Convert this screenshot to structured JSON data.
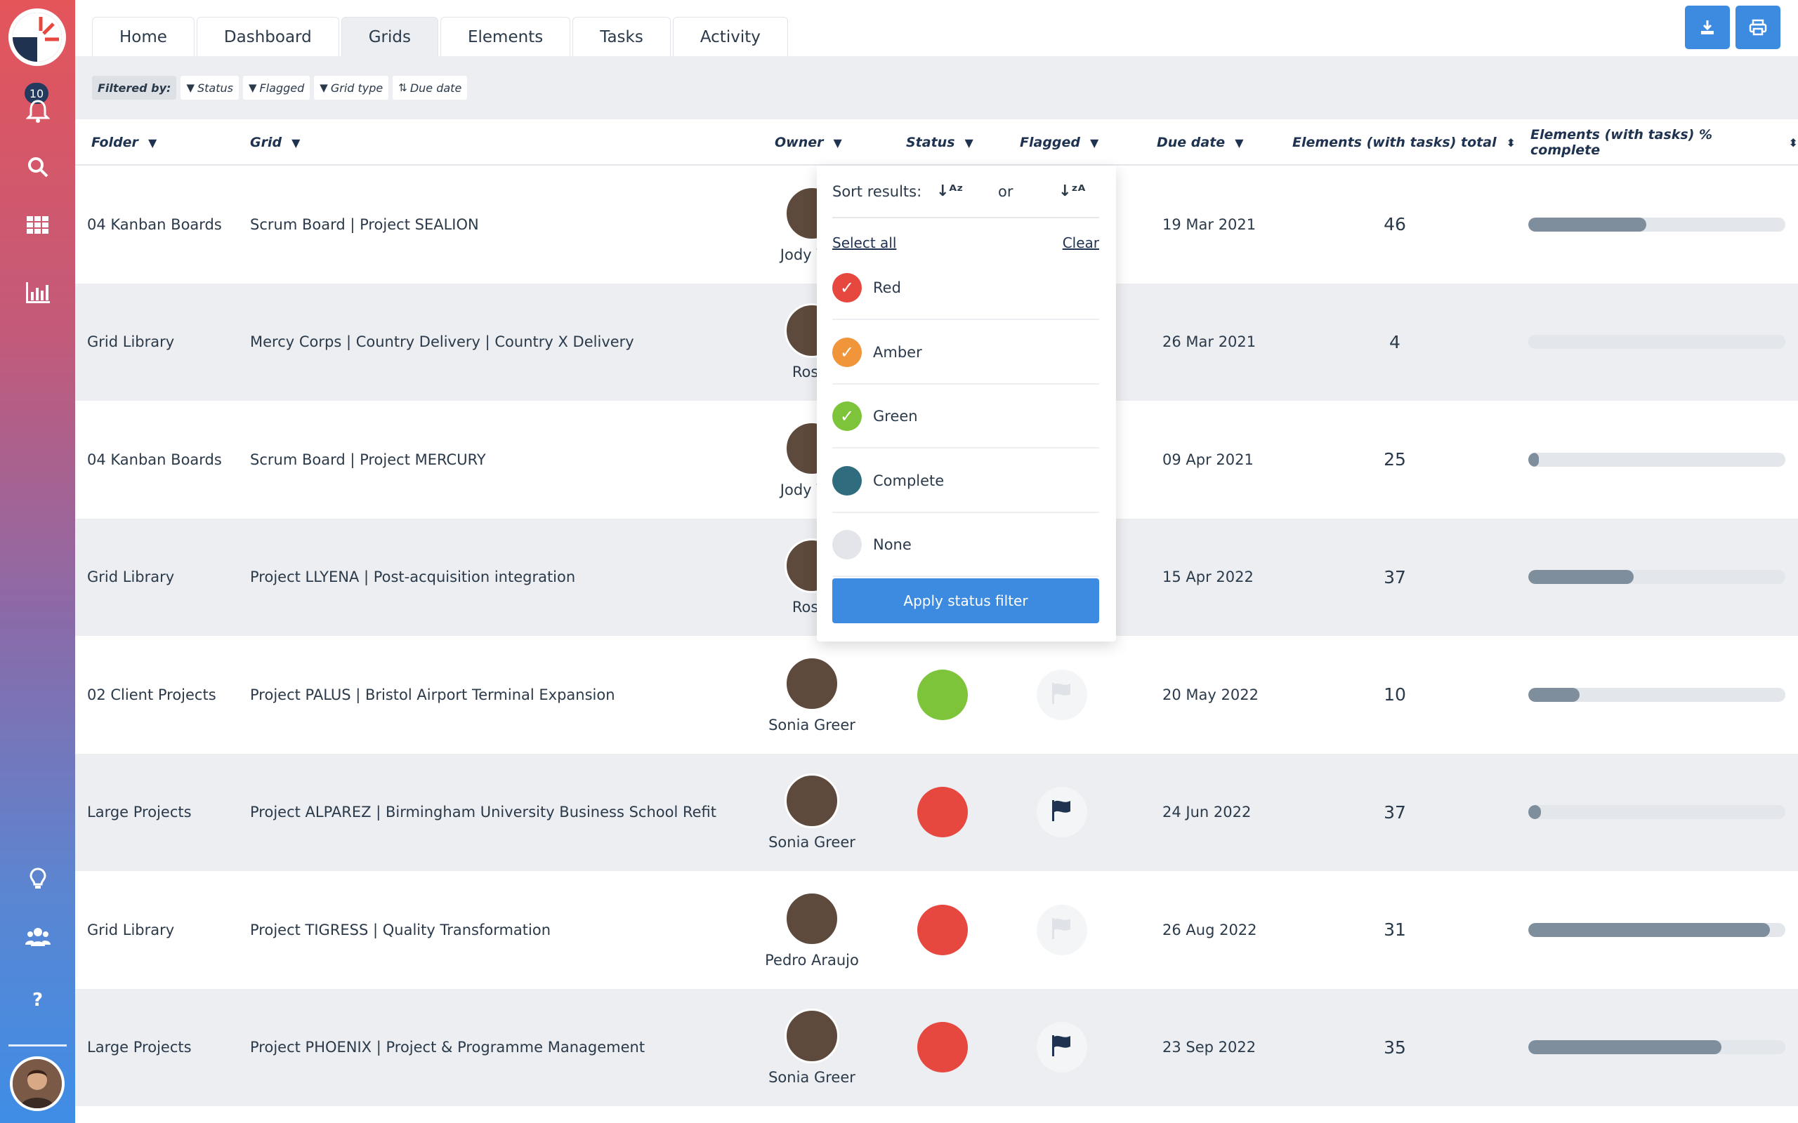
{
  "sidebar": {
    "notification_count": "10",
    "icons": [
      "bell-icon",
      "search-icon",
      "grid-icon",
      "chart-icon",
      "lightbulb-icon",
      "users-icon",
      "help-icon"
    ]
  },
  "tabs": [
    "Home",
    "Dashboard",
    "Grids",
    "Elements",
    "Tasks",
    "Activity"
  ],
  "active_tab": "Grids",
  "filters": {
    "label": "Filtered by:",
    "chips": [
      "Status",
      "Flagged",
      "Grid type",
      "Due date"
    ]
  },
  "table": {
    "headers": {
      "folder": "Folder",
      "grid": "Grid",
      "owner": "Owner",
      "status": "Status",
      "flagged": "Flagged",
      "due_date": "Due date",
      "total": "Elements (with tasks) total",
      "complete": "Elements (with tasks) % complete"
    },
    "rows": [
      {
        "folder": "04 Kanban Boards",
        "grid": "Scrum Board | Project SEALION",
        "owner": "Jody Van",
        "status": "",
        "flagged": "",
        "due": "19 Mar 2021",
        "total": "46",
        "pct": 0.46
      },
      {
        "folder": "Grid Library",
        "grid": "Mercy Corps | Country Delivery | Country X Delivery",
        "owner": "Rosie",
        "status": "",
        "flagged": "",
        "due": "26 Mar 2021",
        "total": "4",
        "pct": 0.0
      },
      {
        "folder": "04 Kanban Boards",
        "grid": "Scrum Board | Project MERCURY",
        "owner": "Jody Van",
        "status": "",
        "flagged": "",
        "due": "09 Apr 2021",
        "total": "25",
        "pct": 0.04
      },
      {
        "folder": "Grid Library",
        "grid": "Project LLYENA | Post-acquisition integration",
        "owner": "Rosie",
        "status": "",
        "flagged": "",
        "due": "15 Apr 2022",
        "total": "37",
        "pct": 0.41
      },
      {
        "folder": "02 Client Projects",
        "grid": "Project PALUS | Bristol Airport Terminal Expansion",
        "owner": "Sonia Greer",
        "status": "green",
        "flagged": "no",
        "due": "20 May 2022",
        "total": "10",
        "pct": 0.2
      },
      {
        "folder": "Large Projects",
        "grid": "Project ALPAREZ | Birmingham University Business School Refit",
        "owner": "Sonia Greer",
        "status": "red",
        "flagged": "yes",
        "due": "24 Jun 2022",
        "total": "37",
        "pct": 0.05
      },
      {
        "folder": "Grid Library",
        "grid": "Project TIGRESS | Quality Transformation",
        "owner": "Pedro Araujo",
        "status": "red",
        "flagged": "no",
        "due": "26 Aug 2022",
        "total": "31",
        "pct": 0.94
      },
      {
        "folder": "Large Projects",
        "grid": "Project PHOENIX | Project & Programme Management",
        "owner": "Sonia Greer",
        "status": "red",
        "flagged": "yes",
        "due": "23 Sep 2022",
        "total": "35",
        "pct": 0.75
      }
    ]
  },
  "popup": {
    "sort_label": "Sort results:",
    "or": "or",
    "select_all": "Select all",
    "clear": "Clear",
    "options": [
      {
        "label": "Red",
        "color": "#e6473e",
        "checked": true
      },
      {
        "label": "Amber",
        "color": "#f0953a",
        "checked": true
      },
      {
        "label": "Green",
        "color": "#7dc43b",
        "checked": true
      },
      {
        "label": "Complete",
        "color": "#2f6d7e",
        "checked": false
      },
      {
        "label": "None",
        "color": "#e3e5ea",
        "checked": false
      }
    ],
    "apply": "Apply status filter"
  },
  "colors": {
    "red": "#e6473e",
    "green": "#7dc43b",
    "accent": "#3d8be0",
    "flag": "#1f3350"
  }
}
